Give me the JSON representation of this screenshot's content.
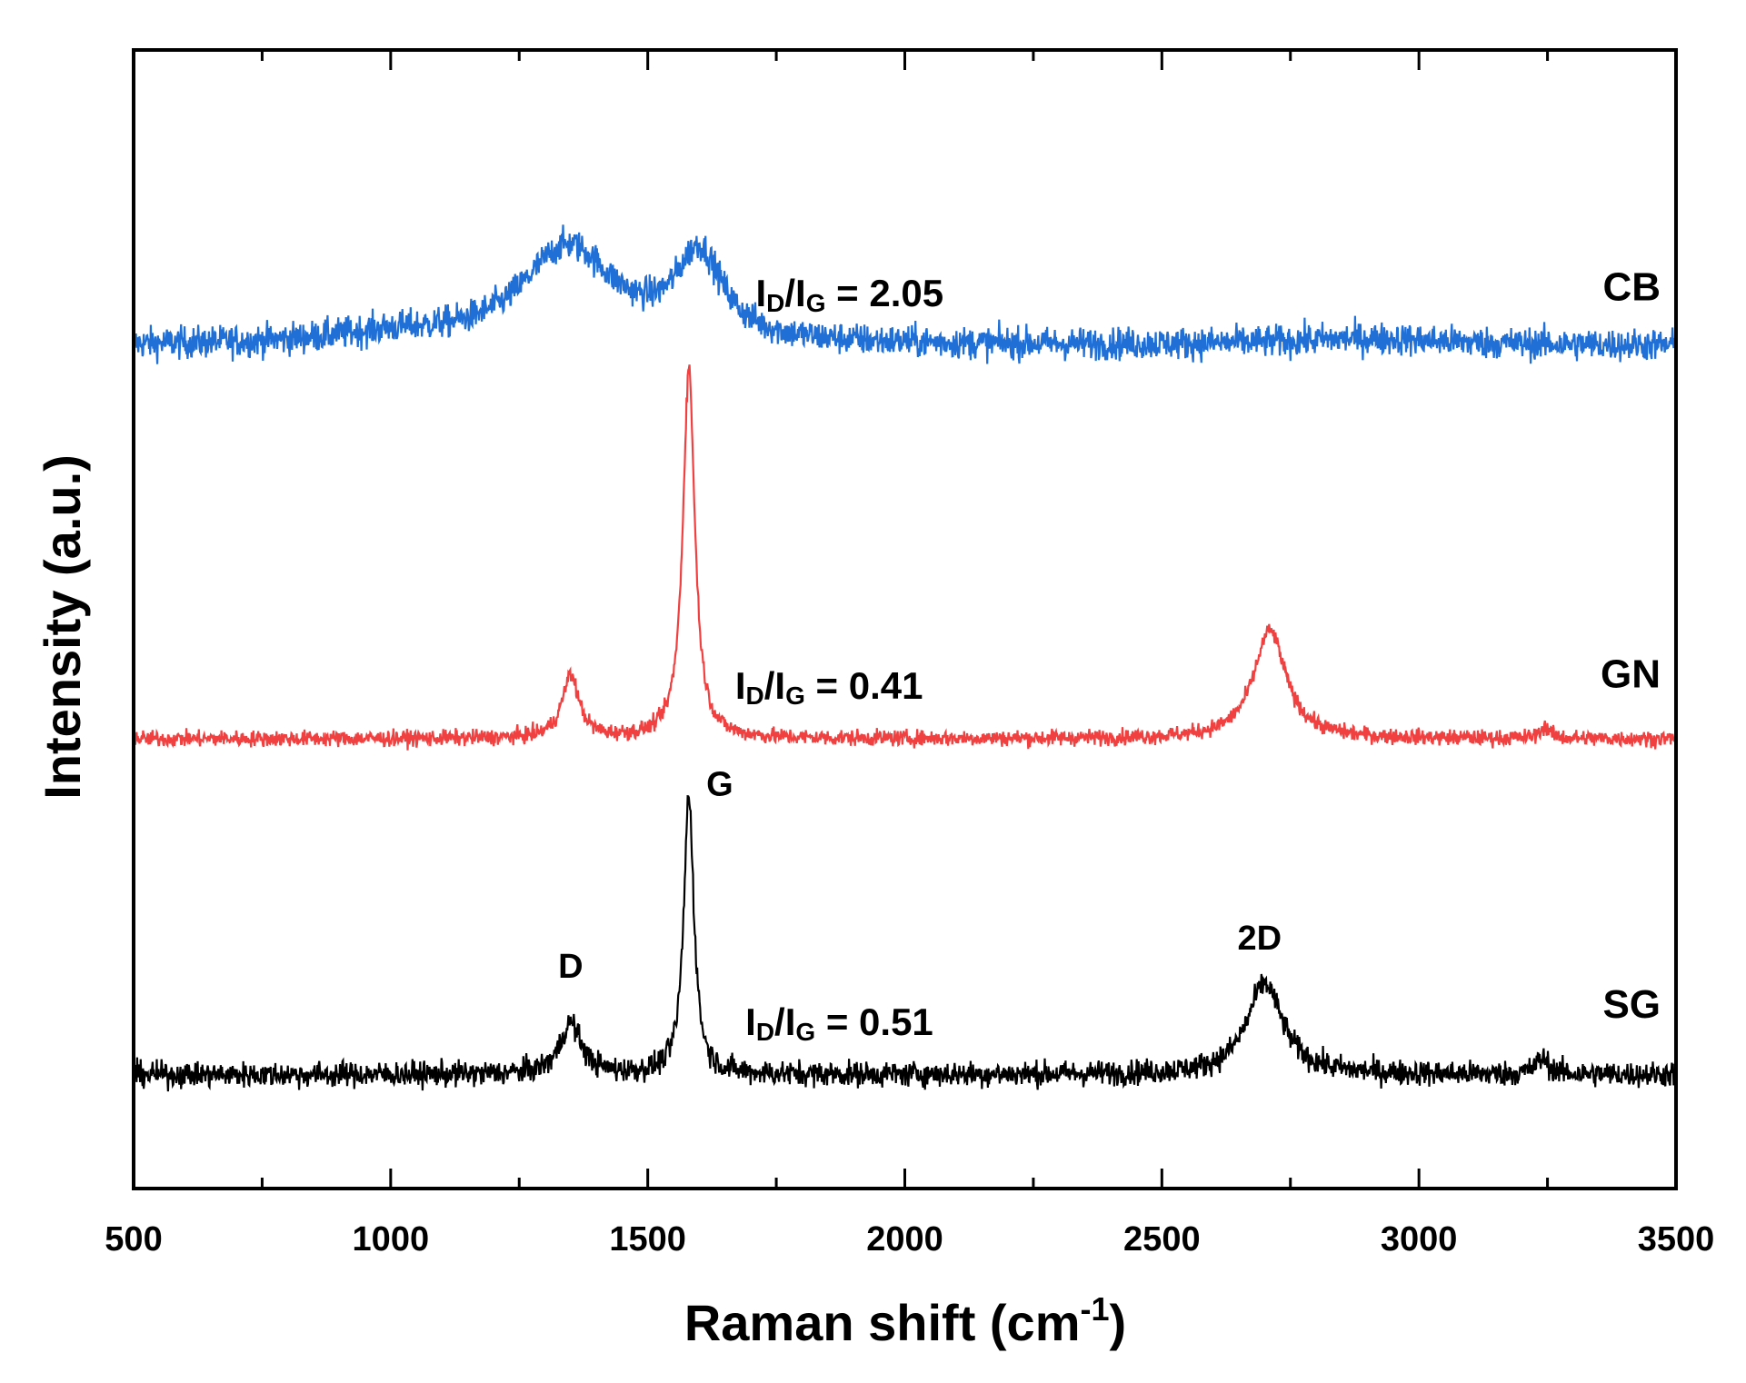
{
  "chart_data": {
    "type": "line",
    "xlabel": "Raman shift (cm",
    "xlabel_sup": "-1",
    "xlabel_close": ")",
    "ylabel": "Intensity (a.u.)",
    "xlim": [
      500,
      3500
    ],
    "ylim": [
      0,
      100
    ],
    "x_ticks": [
      500,
      1000,
      1500,
      2000,
      2500,
      3000,
      3500
    ],
    "x_tick_labels": [
      "500",
      "1000",
      "1500",
      "2000",
      "2500",
      "3000",
      "3500"
    ],
    "series": [
      {
        "name": "CB",
        "color": "#1f6fd6",
        "baseline": 74,
        "noise": 0.7,
        "peaks": [
          {
            "center": 1345,
            "height": 8.5,
            "width": 110
          },
          {
            "center": 1600,
            "height": 7.5,
            "width": 55
          },
          {
            "center": 1000,
            "height": 0.8,
            "width": 150
          },
          {
            "center": 2900,
            "height": 0.6,
            "width": 200
          }
        ],
        "ratio_prefix": "I",
        "ratio_sub1": "D",
        "ratio_mid": "/I",
        "ratio_sub2": "G",
        "ratio_value": " = 2.05"
      },
      {
        "name": "GN",
        "color": "#f04040",
        "baseline": 39.5,
        "noise": 0.35,
        "peaks": [
          {
            "center": 1350,
            "height": 5.5,
            "width": 20
          },
          {
            "center": 1580,
            "height": 32.5,
            "width": 14
          },
          {
            "center": 2710,
            "height": 9.5,
            "width": 38
          },
          {
            "center": 3245,
            "height": 1.0,
            "width": 12
          }
        ],
        "ratio_prefix": "I",
        "ratio_sub1": "D",
        "ratio_mid": "/I",
        "ratio_sub2": "G",
        "ratio_value": " = 0.41"
      },
      {
        "name": "SG",
        "color": "#000000",
        "baseline": 10,
        "noise": 0.55,
        "peaks": [
          {
            "center": 1350,
            "height": 4.5,
            "width": 25
          },
          {
            "center": 1580,
            "height": 24.5,
            "width": 12
          },
          {
            "center": 2700,
            "height": 8,
            "width": 42
          },
          {
            "center": 3240,
            "height": 1.4,
            "width": 15
          }
        ],
        "ratio_prefix": "I",
        "ratio_sub1": "D",
        "ratio_mid": "/I",
        "ratio_sub2": "G",
        "ratio_value": " = 0.51"
      }
    ],
    "peak_labels": [
      {
        "text": "D",
        "x": 1350,
        "y": 18.5
      },
      {
        "text": "G",
        "x": 1640,
        "y": 34.5
      },
      {
        "text": "2D",
        "x": 2690,
        "y": 21
      }
    ],
    "ratio_positions": [
      {
        "x": 1710,
        "y": 77.5
      },
      {
        "x": 1670,
        "y": 43
      },
      {
        "x": 1690,
        "y": 13.5
      }
    ],
    "series_label_positions": [
      {
        "x": 3470,
        "y": 78
      },
      {
        "x": 3470,
        "y": 44
      },
      {
        "x": 3470,
        "y": 15
      }
    ]
  }
}
